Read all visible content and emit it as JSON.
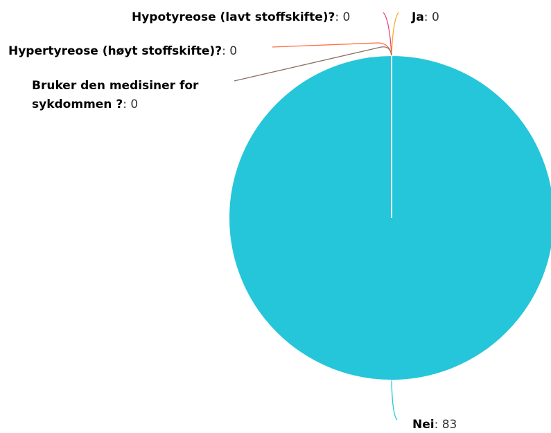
{
  "chart_data": {
    "type": "pie",
    "categories": [
      "Hypotyreose (lavt stoffskifte)?",
      "Ja",
      "Hypertyreose (høyt stoffskifte)?",
      "Bruker den medisiner for sykdommen ?",
      "Nei"
    ],
    "values": [
      0,
      0,
      0,
      0,
      83
    ],
    "colors": [
      "#ec407a",
      "#ffa726",
      "#ff7043",
      "#8d6e63",
      "#26c6da"
    ],
    "label_separator": ": "
  }
}
